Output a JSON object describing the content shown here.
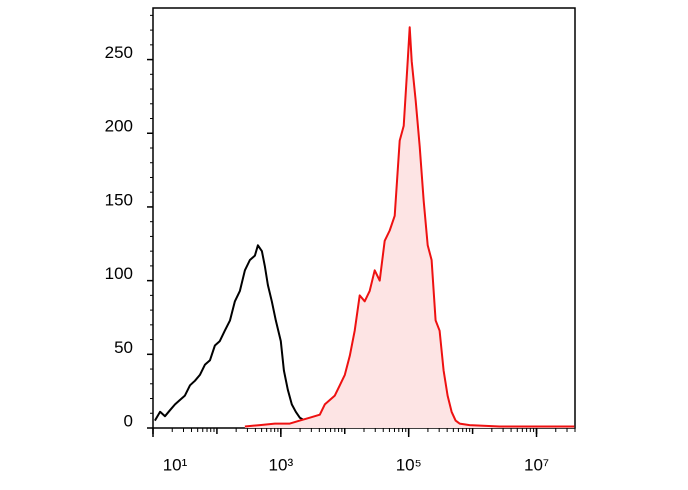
{
  "chart_data": {
    "type": "line",
    "xscale": "log",
    "xlim": [
      10,
      40000000
    ],
    "ylim": [
      0,
      285
    ],
    "xticks": [
      {
        "value": 10,
        "label": "10¹"
      },
      {
        "value": 1000,
        "label": "10³"
      },
      {
        "value": 100000,
        "label": "10⁵"
      },
      {
        "value": 10000000,
        "label": "10⁷"
      }
    ],
    "yticks": [
      0,
      50,
      100,
      150,
      200,
      250
    ],
    "series": [
      {
        "color": "#000000",
        "fill": null,
        "x": [
          10.7,
          12.9,
          15.4,
          18.4,
          22.1,
          26.4,
          31.6,
          37.9,
          45.3,
          54.2,
          65,
          77.8,
          93,
          111,
          133,
          160,
          191,
          229,
          274,
          328,
          393,
          438,
          505,
          562,
          627,
          723,
          835,
          1000,
          1115,
          1286,
          1485,
          1715,
          1980,
          2371,
          2840
        ],
        "values": [
          5,
          11,
          8,
          12,
          16,
          19,
          22,
          29,
          32,
          36,
          43,
          46,
          56,
          59,
          66,
          73,
          86,
          93,
          107,
          114,
          117,
          124,
          120,
          110,
          97,
          86,
          73,
          59,
          39,
          26,
          16,
          11,
          7,
          5,
          2
        ]
      },
      {
        "color": "#ee1111",
        "fill": "#fde4e4",
        "x": [
          274,
          470,
          805,
          1383,
          1980,
          2840,
          4070,
          4870,
          5830,
          6980,
          8360,
          10000,
          11970,
          14330,
          17150,
          20540,
          24600,
          29430,
          35240,
          42170,
          50490,
          60430,
          72310,
          83560,
          96440,
          103700,
          111400,
          128600,
          148500,
          171500,
          198100,
          228700,
          264200,
          304900,
          352200,
          406600,
          469500,
          542000,
          626400,
          898000,
          2642000,
          39000000
        ],
        "values": [
          1,
          2,
          3,
          3,
          5,
          7,
          9,
          16,
          19,
          22,
          29,
          36,
          49,
          66,
          90,
          86,
          93,
          107,
          100,
          127,
          134,
          144,
          195,
          205,
          249,
          272,
          249,
          222,
          191,
          154,
          124,
          114,
          73,
          66,
          39,
          22,
          11,
          5,
          3,
          2,
          1,
          1
        ]
      }
    ]
  }
}
